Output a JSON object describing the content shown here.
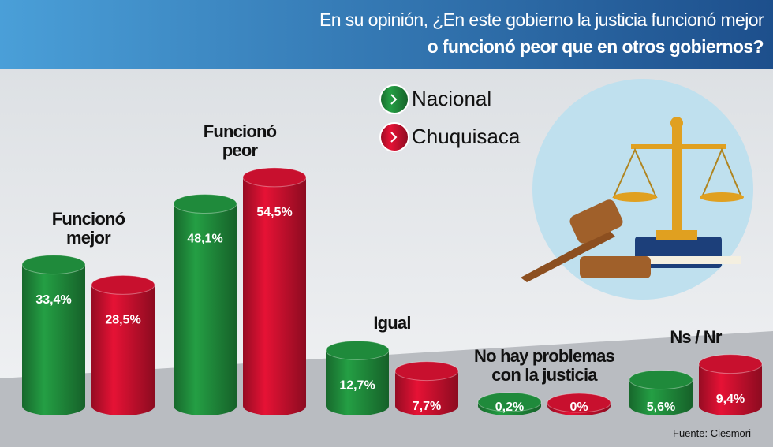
{
  "chart_data": {
    "type": "bar",
    "title": [
      "En su opinión, ¿En este gobierno la justicia funcionó mejor",
      "o funcionó peor que en otros gobiernos?"
    ],
    "categories": [
      "Funcionó mejor",
      "Funcionó peor",
      "Igual",
      "No hay problemas con la justicia",
      "Ns / Nr"
    ],
    "series": [
      {
        "name": "Nacional",
        "color": "#1f8a3b",
        "values": [
          33.4,
          48.1,
          12.7,
          0.2,
          5.6
        ],
        "value_labels": [
          "33,4%",
          "48,1%",
          "12,7%",
          "0,2%",
          "5,6%"
        ]
      },
      {
        "name": "Chuquisaca",
        "color": "#c8102e",
        "values": [
          28.5,
          54.5,
          7.7,
          0,
          9.4
        ],
        "value_labels": [
          "28,5%",
          "54,5%",
          "7,7%",
          "0%",
          "9,4%"
        ]
      }
    ],
    "source": "Fuente: Ciesmori"
  }
}
